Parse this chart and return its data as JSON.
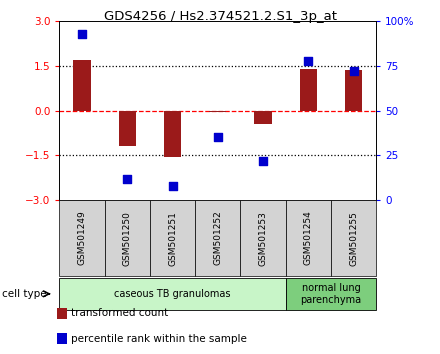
{
  "title": "GDS4256 / Hs2.374521.2.S1_3p_at",
  "samples": [
    "GSM501249",
    "GSM501250",
    "GSM501251",
    "GSM501252",
    "GSM501253",
    "GSM501254",
    "GSM501255"
  ],
  "transformed_count": [
    1.7,
    -1.2,
    -1.55,
    -0.05,
    -0.45,
    1.4,
    1.38
  ],
  "percentile_rank": [
    93,
    12,
    8,
    35,
    22,
    78,
    72
  ],
  "bar_color": "#9b1a1a",
  "dot_color": "#0000cd",
  "ylim_left": [
    -3,
    3
  ],
  "ylim_right": [
    0,
    100
  ],
  "yticks_left": [
    -3,
    -1.5,
    0,
    1.5,
    3
  ],
  "yticks_right": [
    0,
    25,
    50,
    75,
    100
  ],
  "ytick_labels_right": [
    "0",
    "25",
    "50",
    "75",
    "100%"
  ],
  "hlines_y": [
    1.5,
    0.0,
    -1.5
  ],
  "hline_styles": [
    "dotted",
    "dashed",
    "dotted"
  ],
  "hline_colors": [
    "black",
    "red",
    "black"
  ],
  "cell_type_groups": [
    {
      "label": "caseous TB granulomas",
      "indices": [
        0,
        1,
        2,
        3,
        4
      ],
      "color": "#c8f5c8"
    },
    {
      "label": "normal lung\nparenchyma",
      "indices": [
        5,
        6
      ],
      "color": "#7dce7d"
    }
  ],
  "cell_type_label": "cell type",
  "legend_items": [
    {
      "color": "#9b1a1a",
      "label": "transformed count"
    },
    {
      "color": "#0000cd",
      "label": "percentile rank within the sample"
    }
  ],
  "bg_color": "#ffffff"
}
